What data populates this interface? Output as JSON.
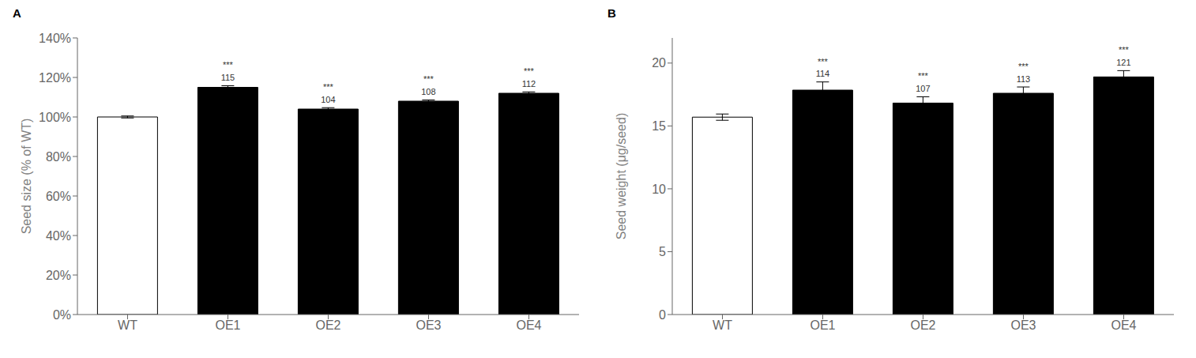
{
  "chart_data": [
    {
      "type": "bar",
      "title": "A",
      "categories": [
        "WT",
        "OE1",
        "OE2",
        "OE3",
        "OE4"
      ],
      "values": [
        1.0,
        1.15,
        1.04,
        1.08,
        1.12
      ],
      "errors": [
        0.005,
        0.008,
        0.007,
        0.006,
        0.007
      ],
      "colors": [
        "white",
        "black",
        "black",
        "black",
        "black"
      ],
      "annotations": [
        {
          "category": "OE1",
          "texts": [
            "115",
            "***"
          ]
        },
        {
          "category": "OE2",
          "texts": [
            "104",
            "***"
          ]
        },
        {
          "category": "OE3",
          "texts": [
            "108",
            "***"
          ]
        },
        {
          "category": "OE4",
          "texts": [
            "112",
            "***"
          ]
        }
      ],
      "ylabel": "Seed size (% of WT)",
      "ylim": [
        0.0,
        1.4
      ],
      "yticks": [
        {
          "value": 0.0,
          "label": "0%"
        },
        {
          "value": 0.2,
          "label": "20%"
        },
        {
          "value": 0.4,
          "label": "40%"
        },
        {
          "value": 0.6,
          "label": "60%"
        },
        {
          "value": 0.8,
          "label": "80%"
        },
        {
          "value": 1.0,
          "label": "100%"
        },
        {
          "value": 1.2,
          "label": "120%"
        },
        {
          "value": 1.4,
          "label": "140%"
        }
      ],
      "grid": false
    },
    {
      "type": "bar",
      "title": "B",
      "categories": [
        "WT",
        "OE1",
        "OE2",
        "OE3",
        "OE4"
      ],
      "values": [
        15.7,
        17.85,
        16.82,
        17.6,
        18.9
      ],
      "errors": [
        0.25,
        0.65,
        0.5,
        0.5,
        0.5
      ],
      "colors": [
        "white",
        "black",
        "black",
        "black",
        "black"
      ],
      "annotations": [
        {
          "category": "OE1",
          "texts": [
            "114",
            "***"
          ]
        },
        {
          "category": "OE2",
          "texts": [
            "107",
            "***"
          ]
        },
        {
          "category": "OE3",
          "texts": [
            "113",
            "***"
          ]
        },
        {
          "category": "OE4",
          "texts": [
            "121",
            "***"
          ]
        }
      ],
      "ylabel": "Seed weight (μg/seed)",
      "ylim": [
        0,
        22
      ],
      "yticks": [
        0,
        5,
        10,
        15,
        20
      ],
      "grid": false
    }
  ]
}
